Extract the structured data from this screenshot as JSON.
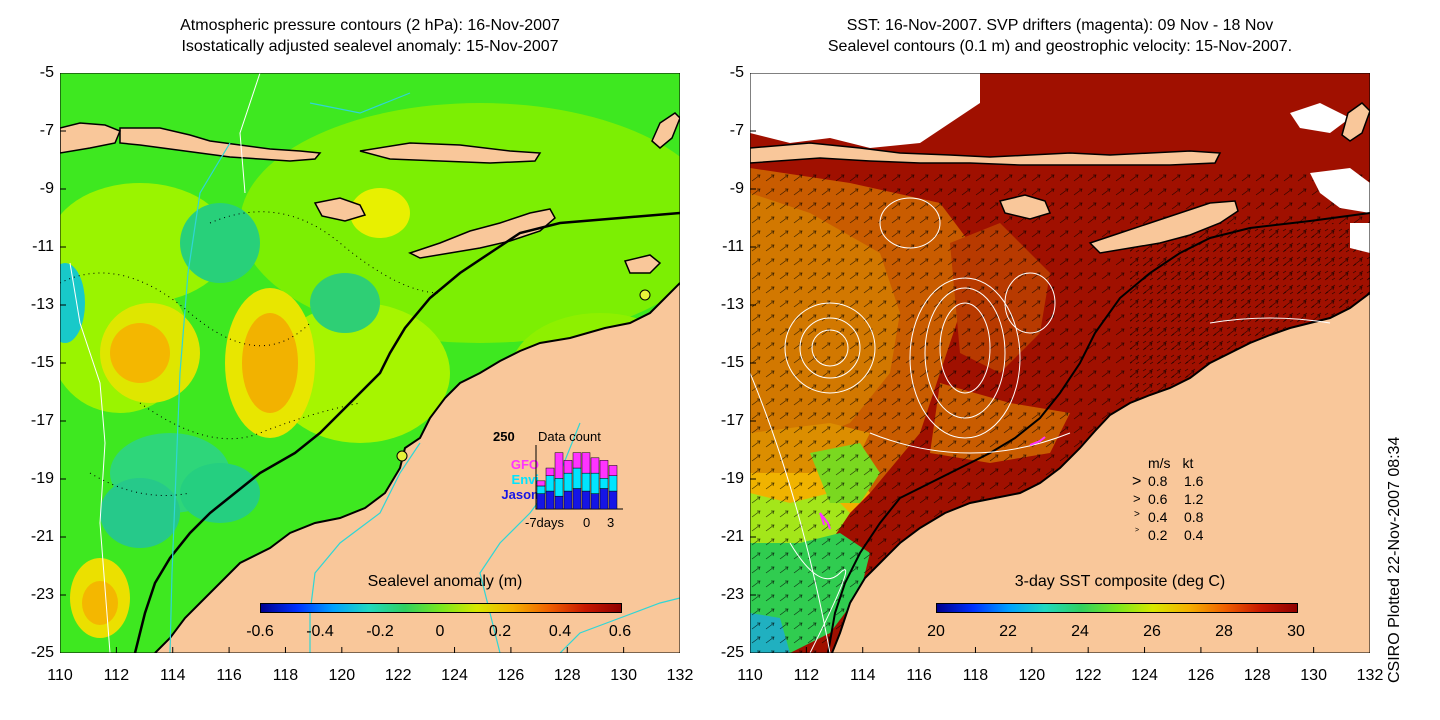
{
  "left_panel": {
    "title_line1": "Atmospheric pressure contours (2 hPa): 16-Nov-2007",
    "title_line2": "Isostatically adjusted sealevel anomaly: 15-Nov-2007",
    "colorbar": {
      "label": "Sealevel anomaly (m)",
      "ticks": [
        "-0.6",
        "-0.4",
        "-0.2",
        "0",
        "0.2",
        "0.4",
        "0.6"
      ]
    },
    "data_count": {
      "ymax_label": "250",
      "title": "Data count",
      "legend": [
        {
          "name": "GFO",
          "color": "#ff33ff"
        },
        {
          "name": "Envi",
          "color": "#00e5ff"
        },
        {
          "name": "Jason",
          "color": "#1515e6"
        }
      ],
      "x_labels": [
        "-7days",
        "0",
        "3"
      ],
      "bars": [
        {
          "day": -7,
          "jason": 60,
          "envi": 30,
          "gfo": 20
        },
        {
          "day": -6,
          "jason": 70,
          "envi": 60,
          "gfo": 30
        },
        {
          "day": -5,
          "jason": 50,
          "envi": 70,
          "gfo": 100
        },
        {
          "day": -4,
          "jason": 70,
          "envi": 70,
          "gfo": 50
        },
        {
          "day": -3,
          "jason": 80,
          "envi": 80,
          "gfo": 60
        },
        {
          "day": -2,
          "jason": 70,
          "envi": 70,
          "gfo": 80
        },
        {
          "day": -1,
          "jason": 60,
          "envi": 80,
          "gfo": 60
        },
        {
          "day": 0,
          "jason": 80,
          "envi": 40,
          "gfo": 70
        },
        {
          "day": 1,
          "jason": 70,
          "envi": 60,
          "gfo": 40
        }
      ]
    }
  },
  "right_panel": {
    "title_line1": "SST: 16-Nov-2007. SVP drifters (magenta): 09 Nov - 18 Nov",
    "title_line2": "Sealevel contours (0.1 m) and geostrophic velocity: 15-Nov-2007.",
    "colorbar": {
      "label": "3-day SST composite (deg C)",
      "ticks": [
        "20",
        "22",
        "24",
        "26",
        "28",
        "30"
      ]
    },
    "velocity_legend": {
      "header_ms": "m/s",
      "header_kt": "kt",
      "rows": [
        {
          "ms": "0.8",
          "kt": "1.6"
        },
        {
          "ms": "0.6",
          "kt": "1.2"
        },
        {
          "ms": "0.4",
          "kt": "0.8"
        },
        {
          "ms": "0.2",
          "kt": "0.4"
        }
      ]
    }
  },
  "axes": {
    "x_ticks": [
      "110",
      "112",
      "114",
      "116",
      "118",
      "120",
      "122",
      "124",
      "126",
      "128",
      "130",
      "132"
    ],
    "y_ticks": [
      "-5",
      "-7",
      "-9",
      "-11",
      "-13",
      "-15",
      "-17",
      "-19",
      "-21",
      "-23",
      "-25"
    ],
    "lon_range": [
      110,
      132
    ],
    "lat_range": [
      -25,
      -5
    ]
  },
  "credit": "CSIRO Plotted 22-Nov-2007 08:34",
  "colors": {
    "land": "#f9c79a",
    "coast": "#000000",
    "bathymetry": "#2fd6d6",
    "drifter": "#ff33ff"
  }
}
